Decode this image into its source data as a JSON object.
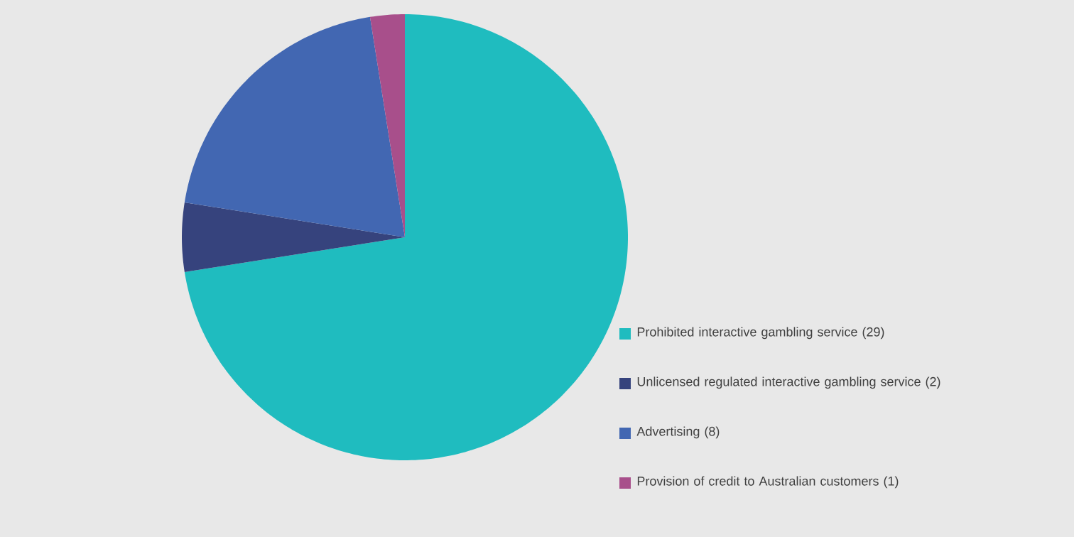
{
  "chart_data": {
    "type": "pie",
    "legend": "right",
    "categories": [
      "Prohibited interactive gambling service (29)",
      "Unlicensed regulated interactive gambling service (2)",
      "Advertising (8)",
      "Provision of credit to Australian customers (1)"
    ],
    "values": [
      29,
      2,
      8,
      1
    ],
    "colors": [
      "#1fbcbf",
      "#36437d",
      "#4267b2",
      "#a84f8b"
    ]
  }
}
